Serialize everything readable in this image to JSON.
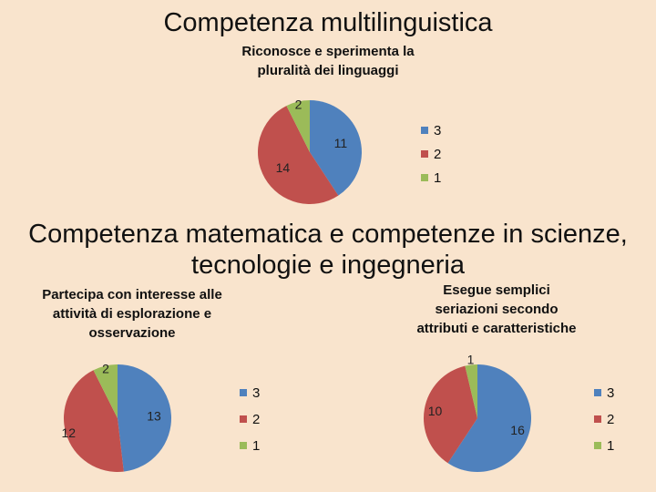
{
  "section1": {
    "heading": "Competenza multilinguistica"
  },
  "section2": {
    "heading_line1": "Competenza matematica e competenze in scienze,",
    "heading_line2": "tecnologie e ingegneria"
  },
  "colors": {
    "3": "#4f81bd",
    "2": "#c0504d",
    "1": "#9bbb59"
  },
  "chart_data": [
    {
      "type": "pie",
      "title": "Riconosce e sperimenta la pluralità dei linguaggi",
      "title_lines": [
        "Riconosce e sperimenta la",
        "pluralità dei linguaggi"
      ],
      "categories": [
        "3",
        "2",
        "1"
      ],
      "values": [
        11,
        14,
        2
      ],
      "legend": [
        "3",
        "2",
        "1"
      ],
      "legend_position": "right"
    },
    {
      "type": "pie",
      "title": "Partecipa con interesse alle attività di esplorazione e osservazione",
      "title_lines": [
        "Partecipa con interesse alle",
        "attività di esplorazione e",
        "osservazione"
      ],
      "categories": [
        "3",
        "2",
        "1"
      ],
      "values": [
        13,
        12,
        2
      ],
      "legend": [
        "3",
        "2",
        "1"
      ],
      "legend_position": "right"
    },
    {
      "type": "pie",
      "title": "Esegue semplici seriazioni secondo attributi e caratteristiche",
      "title_lines": [
        "Esegue semplici",
        "seriazioni secondo",
        "attributi e caratteristiche"
      ],
      "categories": [
        "3",
        "2",
        "1"
      ],
      "values": [
        16,
        10,
        1
      ],
      "legend": [
        "3",
        "2",
        "1"
      ],
      "legend_position": "right"
    }
  ]
}
